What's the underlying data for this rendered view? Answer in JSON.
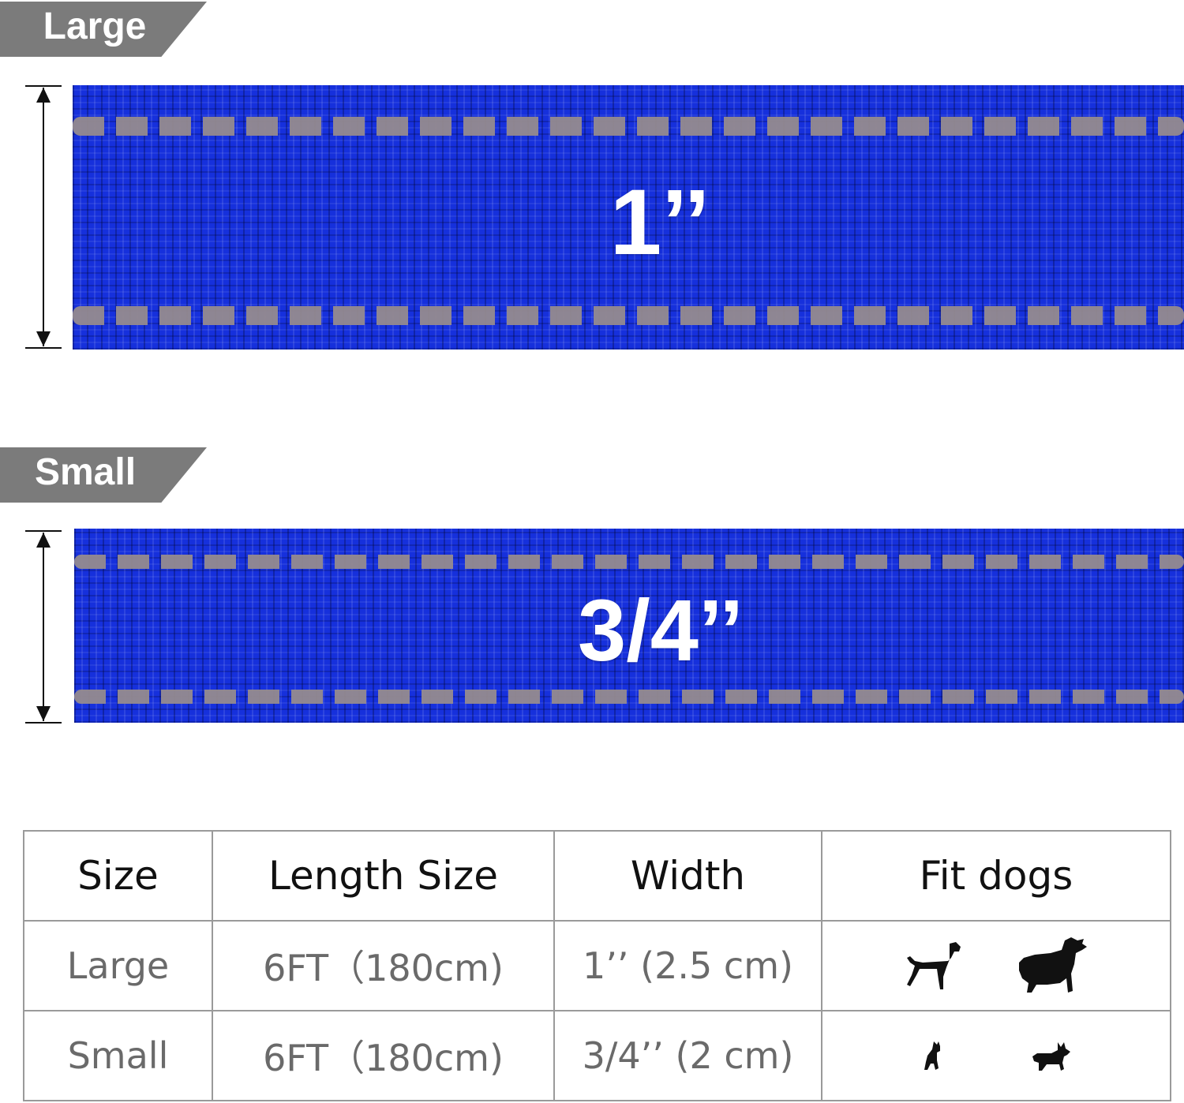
{
  "sections": [
    {
      "tag": "Large",
      "width_label": "1’’"
    },
    {
      "tag": "Small",
      "width_label": "3/4’’"
    }
  ],
  "colors": {
    "strap": "#1630dc",
    "reflective_stitch": "#948a8f",
    "tag_bg": "#7b7b7b"
  },
  "table": {
    "headers": [
      "Size",
      "Length Size",
      "Width",
      "Fit dogs"
    ],
    "rows": [
      {
        "size": "Large",
        "length": "6FT（180cm)",
        "width": "1’’ (2.5 cm)",
        "dogs": [
          "large-dog-icon",
          "large-dog-icon"
        ]
      },
      {
        "size": "Small",
        "length": "6FT（180cm)",
        "width": "3/4’’ (2 cm)",
        "dogs": [
          "small-dog-icon",
          "small-dog-icon"
        ]
      }
    ]
  }
}
